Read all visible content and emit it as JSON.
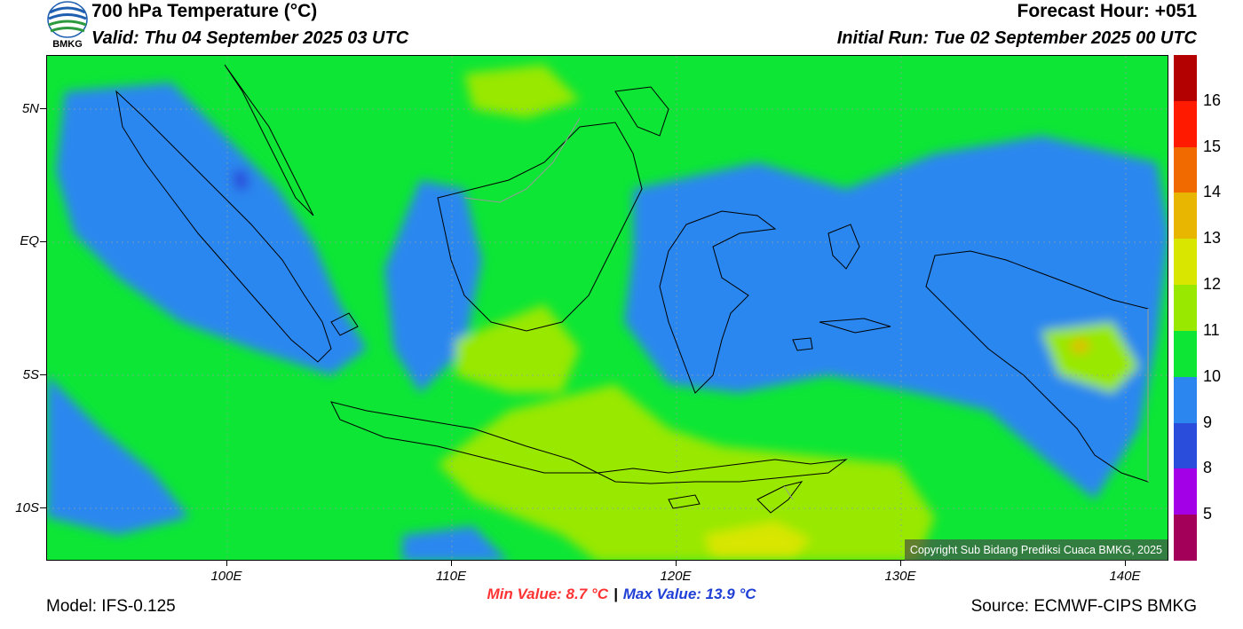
{
  "header": {
    "title": "700 hPa Temperature (°C)",
    "valid": "Valid: Thu 04 September 2025 03 UTC",
    "forecast_hour": "Forecast Hour: +051",
    "initial_run": "Initial Run: Tue 02 September 2025 00 UTC"
  },
  "logo": {
    "text": "BMKG"
  },
  "map": {
    "lat_labels": [
      "5N",
      "EQ",
      "5S",
      "10S"
    ],
    "lon_labels": [
      "100E",
      "110E",
      "120E",
      "130E",
      "140E"
    ],
    "copyright": "Copyright Sub Bidang Prediksi Cuaca BMKG, 2025"
  },
  "colorbar": {
    "labels": [
      "16",
      "15",
      "14",
      "13",
      "12",
      "11",
      "10",
      "9",
      "8",
      "5"
    ],
    "colors": [
      "#b30000",
      "#ff1a00",
      "#f06a00",
      "#e8b600",
      "#d8e600",
      "#98e800",
      "#0de635",
      "#2b87ef",
      "#2b4ddc",
      "#a400e8",
      "#a3005a"
    ]
  },
  "stats": {
    "min_label": "Min Value: 8.7 °C",
    "separator": "|",
    "max_label": "Max Value: 13.9 °C"
  },
  "footer": {
    "model": "Model: IFS-0.125",
    "source": "Source: ECMWF-CIPS BMKG"
  }
}
